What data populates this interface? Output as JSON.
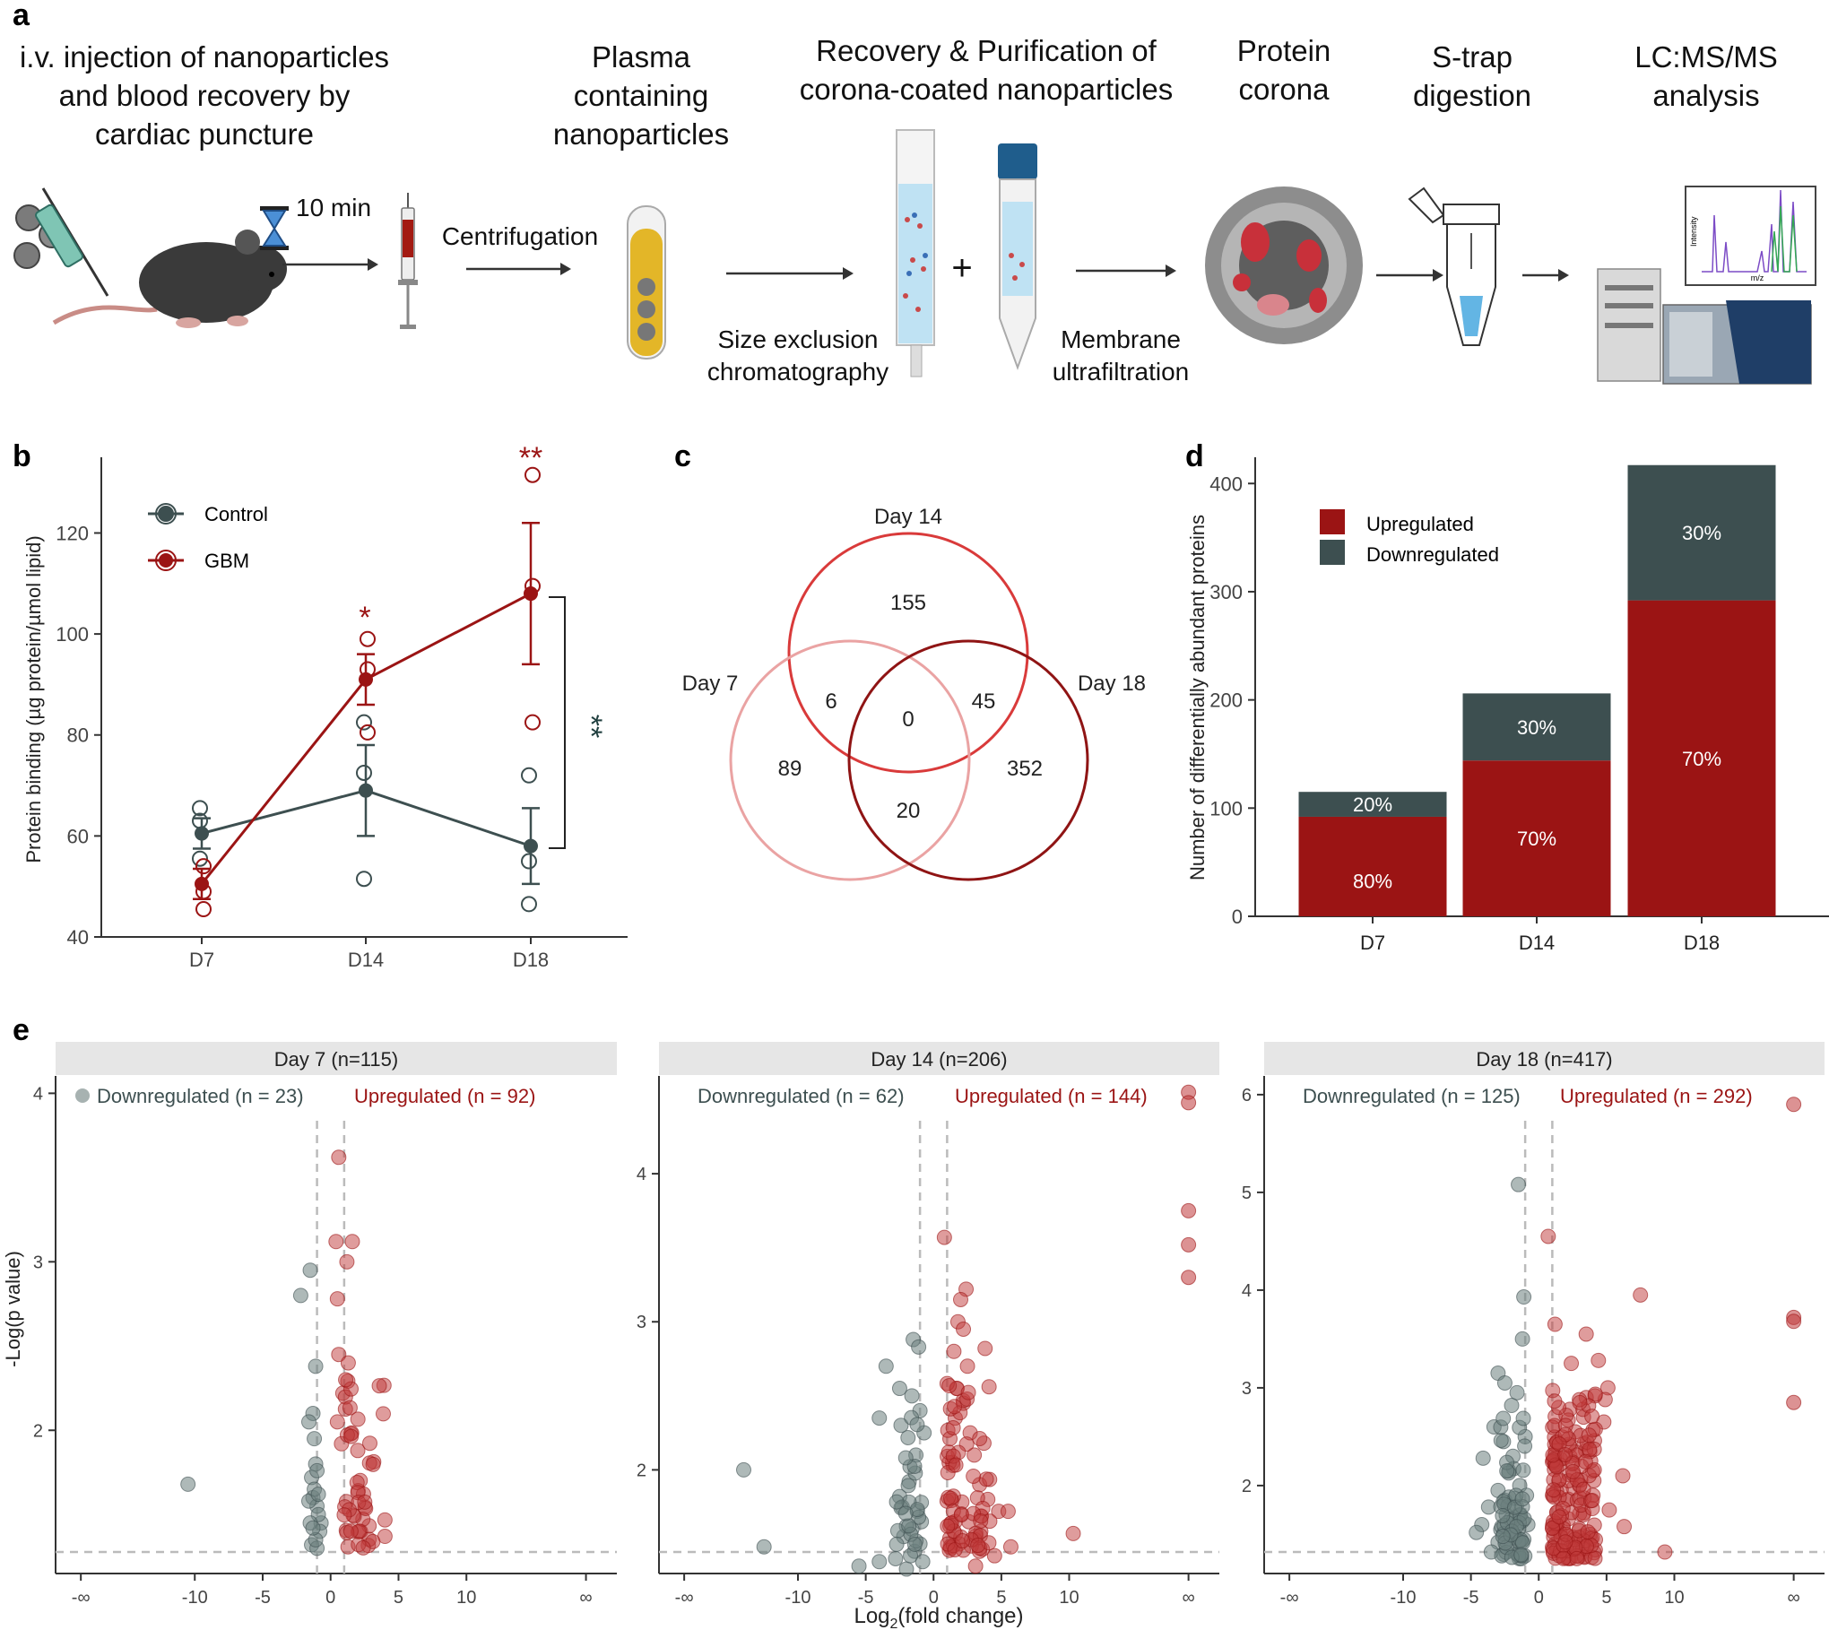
{
  "panel_labels": {
    "a": "a",
    "b": "b",
    "c": "c",
    "d": "d",
    "e": "e"
  },
  "workflow": {
    "steps": [
      {
        "lines": [
          "i.v. injection of nanoparticles",
          "and blood recovery by",
          "cardiac puncture"
        ]
      },
      {
        "lines": [
          "Plasma",
          "containing",
          "nanoparticles"
        ]
      },
      {
        "lines": [
          "Recovery & Purification of",
          "corona-coated nanoparticles"
        ]
      },
      {
        "lines": [
          "Protein",
          "corona"
        ]
      },
      {
        "lines": [
          "S-trap",
          "digestion"
        ]
      },
      {
        "lines": [
          "LC:MS/MS",
          "analysis"
        ]
      }
    ],
    "timer_label": "10 min",
    "centrifugation_label": "Centrifugation",
    "sec_label": [
      "Size exclusion",
      "chromatography"
    ],
    "membrane_label": [
      "Membrane",
      "ultrafiltration"
    ],
    "plus": "+",
    "ms_y": "Intensity",
    "ms_x": "m/z"
  },
  "colors": {
    "control": "#3d4f50",
    "gbm": "#9b1414",
    "gbm_light": "#c0393a",
    "grey_panel": "#e6e6e6",
    "up_pts": "#c0393a",
    "down_pts": "#6c7f7d"
  },
  "chart_data": [
    {
      "id": "b",
      "type": "line",
      "xlabel": "",
      "ylabel": "Protein binding (µg protein/µmol lipid)",
      "categories": [
        "D7",
        "D14",
        "D18"
      ],
      "ylim": [
        40,
        135
      ],
      "yticks": [
        40,
        60,
        80,
        100,
        120
      ],
      "series": [
        {
          "name": "Control",
          "means": [
            60.5,
            69,
            58
          ],
          "sem": [
            3,
            9,
            7.5
          ],
          "points": [
            [
              65.5,
              63,
              55.5
            ],
            [
              82.5,
              72.5,
              51.5
            ],
            [
              72,
              55,
              46.5
            ]
          ]
        },
        {
          "name": "GBM",
          "means": [
            50.5,
            91,
            108
          ],
          "sem": [
            3,
            5,
            14
          ],
          "points": [
            [
              54,
              49,
              45.5
            ],
            [
              99,
              93,
              80.5
            ],
            [
              131.5,
              109.5,
              82.5
            ]
          ]
        }
      ],
      "annotations": [
        {
          "text": "*",
          "category": "D14",
          "y": 128
        },
        {
          "text": "**",
          "category": "D18",
          "y": 138
        },
        {
          "text": "**",
          "bracket": "D18 Control vs GBM"
        }
      ]
    },
    {
      "id": "c",
      "type": "venn",
      "sets": [
        "Day 7",
        "Day 14",
        "Day 18"
      ],
      "regions": {
        "day14_only": 155,
        "day7_day14": 6,
        "all": 0,
        "day14_day18": 45,
        "day7_only": 89,
        "day18_only": 352,
        "day7_day18": 20
      }
    },
    {
      "id": "d",
      "type": "bar",
      "categories": [
        "D7",
        "D14",
        "D18"
      ],
      "ylabel": "Number of differentially abundant proteins",
      "ylim": [
        0,
        420
      ],
      "yticks": [
        0,
        100,
        200,
        300,
        400
      ],
      "series": [
        {
          "name": "Upregulated",
          "values": [
            92,
            144,
            292
          ],
          "labels": [
            "80%",
            "70%",
            "70%"
          ]
        },
        {
          "name": "Downregulated",
          "values": [
            23,
            62,
            125
          ],
          "labels": [
            "20%",
            "30%",
            "30%"
          ]
        }
      ]
    },
    {
      "id": "e",
      "type": "scatter",
      "xlabel": "Log2(fold change)",
      "ylabel": "-Log(p value)",
      "xticks": [
        "-∞",
        "-10",
        "-5",
        "0",
        "5",
        "10",
        "∞"
      ],
      "facets": [
        {
          "title": "Day 7 (n=115)",
          "down_label": "Downregulated (n = 23)",
          "up_label": "Upregulated (n = 92)",
          "ylim": [
            1.15,
            4.05
          ],
          "yticks": [
            2,
            3,
            4
          ],
          "down": [
            [
              -1.5,
              2.95
            ],
            [
              -2.2,
              2.8
            ],
            [
              -1.1,
              2.38
            ],
            [
              -1.3,
              2.1
            ],
            [
              -1.6,
              2.05
            ],
            [
              -1.2,
              1.95
            ],
            [
              -1.1,
              1.8
            ],
            [
              -1.4,
              1.72
            ],
            [
              -10.5,
              1.68
            ],
            [
              -1.3,
              1.6
            ],
            [
              -1.0,
              1.55
            ],
            [
              -0.7,
              1.45
            ],
            [
              -1.4,
              1.32
            ],
            [
              -1.0,
              1.3
            ],
            [
              -1.6,
              1.58
            ],
            [
              -0.9,
              1.5
            ],
            [
              -1.2,
              1.65
            ],
            [
              -0.8,
              1.4
            ],
            [
              -1.5,
              1.45
            ],
            [
              -1.1,
              1.35
            ],
            [
              -0.9,
              1.62
            ],
            [
              -1.3,
              1.42
            ],
            [
              -1.0,
              1.76
            ]
          ],
          "up": [
            [
              0.6,
              3.62
            ],
            [
              0.4,
              3.12
            ],
            [
              1.6,
              3.12
            ],
            [
              1.2,
              3.0
            ],
            [
              0.5,
              2.78
            ],
            [
              0.6,
              2.45
            ],
            [
              1.3,
              2.4
            ],
            [
              0.9,
              2.22
            ],
            [
              0.5,
              2.05
            ],
            [
              1.5,
              1.98
            ],
            [
              0.8,
              1.92
            ],
            [
              2.0,
              1.88
            ]
          ]
        },
        {
          "title": "Day 14 (n=206)",
          "down_label": "Downregulated (n = 62)",
          "up_label": "Upregulated (n = 144)",
          "ylim": [
            1.3,
            4.6
          ],
          "yticks": [
            2,
            3,
            4
          ],
          "down": [
            [
              -1.5,
              2.88
            ],
            [
              -1.1,
              2.83
            ],
            [
              -3.5,
              2.7
            ],
            [
              -2.5,
              2.55
            ],
            [
              -4.0,
              2.35
            ],
            [
              -1.6,
              2.5
            ],
            [
              -1.0,
              2.4
            ],
            [
              -0.7,
              2.25
            ],
            [
              -1.3,
              2.1
            ],
            [
              -14.0,
              2.0
            ],
            [
              -1.8,
              1.92
            ],
            [
              -2.5,
              1.82
            ],
            [
              -1.2,
              1.72
            ],
            [
              -0.9,
              1.65
            ],
            [
              -2.2,
              1.55
            ],
            [
              -12.5,
              1.48
            ],
            [
              -1.4,
              1.45
            ],
            [
              -4.0,
              1.38
            ],
            [
              -5.5,
              1.35
            ],
            [
              -2.0,
              1.33
            ],
            [
              -1.6,
              1.6
            ],
            [
              -1.0,
              1.5
            ],
            [
              -0.8,
              1.38
            ],
            [
              -1.7,
              1.42
            ],
            [
              -1.3,
              1.52
            ],
            [
              -2.8,
              1.4
            ],
            [
              -0.9,
              1.78
            ],
            [
              -1.1,
              1.68
            ],
            [
              -2.0,
              1.62
            ]
          ],
          "up": [
            [
              0.8,
              3.57
            ],
            [
              2.4,
              3.22
            ],
            [
              2.0,
              3.15
            ],
            [
              1.8,
              3.0
            ],
            [
              2.2,
              2.95
            ],
            [
              3.8,
              2.82
            ],
            [
              1.5,
              2.8
            ],
            [
              2.5,
              2.7
            ],
            [
              1.7,
              2.55
            ],
            [
              2.2,
              2.45
            ],
            [
              1.6,
              2.35
            ],
            [
              2.7,
              2.25
            ],
            [
              3.0,
              2.1
            ],
            [
              1.4,
              2.05
            ],
            [
              3.4,
              1.9
            ],
            [
              4.0,
              1.8
            ],
            [
              4.8,
              1.72
            ],
            [
              5.5,
              1.72
            ],
            [
              2.6,
              1.65
            ],
            [
              5.7,
              1.48
            ],
            [
              10.3,
              1.57
            ],
            [
              3.1,
              1.35
            ],
            [
              4.5,
              1.42
            ],
            [
              1.9,
              1.5
            ]
          ]
        },
        {
          "title": "Day 18 (n=417)",
          "down_label": "Downregulated (n = 125)",
          "up_label": "Upregulated (n = 292)",
          "ylim": [
            1.1,
            6.1
          ],
          "yticks": [
            2,
            3,
            4,
            5,
            6
          ],
          "down": [
            [
              -1.5,
              5.08
            ],
            [
              -1.1,
              3.93
            ],
            [
              -1.2,
              3.5
            ],
            [
              -3.0,
              3.15
            ],
            [
              -2.5,
              3.05
            ],
            [
              -1.6,
              2.95
            ],
            [
              -2.0,
              2.82
            ],
            [
              -3.3,
              2.6
            ],
            [
              -2.6,
              2.45
            ],
            [
              -1.0,
              2.5
            ],
            [
              -4.1,
              2.28
            ],
            [
              -2.2,
              2.15
            ],
            [
              -1.4,
              2.0
            ],
            [
              -3.0,
              1.95
            ],
            [
              -2.5,
              1.85
            ],
            [
              -3.7,
              1.78
            ],
            [
              -4.2,
              1.6
            ],
            [
              -4.6,
              1.52
            ],
            [
              -1.8,
              1.5
            ],
            [
              -3.0,
              1.42
            ],
            [
              -2.0,
              1.35
            ],
            [
              -1.1,
              1.45
            ],
            [
              -0.8,
              1.6
            ],
            [
              -1.4,
              1.7
            ],
            [
              -2.8,
              1.55
            ],
            [
              -1.6,
              1.3
            ],
            [
              -3.5,
              1.32
            ],
            [
              -0.9,
              1.9
            ],
            [
              -1.9,
              2.3
            ],
            [
              -2.4,
              1.7
            ]
          ],
          "up": [
            [
              0.7,
              4.55
            ],
            [
              7.5,
              3.95
            ],
            [
              1.2,
              3.65
            ],
            [
              3.5,
              3.55
            ],
            [
              4.4,
              3.28
            ],
            [
              2.4,
              3.25
            ],
            [
              5.1,
              3.0
            ],
            [
              3.5,
              2.9
            ],
            [
              4.9,
              2.88
            ],
            [
              2.3,
              2.78
            ],
            [
              3.3,
              2.7
            ],
            [
              4.8,
              2.65
            ],
            [
              2.7,
              2.55
            ],
            [
              6.2,
              2.1
            ],
            [
              2.3,
              2.3
            ],
            [
              5.2,
              1.75
            ],
            [
              6.3,
              1.58
            ],
            [
              9.3,
              1.32
            ],
            [
              1.5,
              2.05
            ],
            [
              3.0,
              2.0
            ],
            [
              2.0,
              1.85
            ],
            [
              4.0,
              1.9
            ],
            [
              1.2,
              1.4
            ],
            [
              1.8,
              1.6
            ],
            [
              3.8,
              1.5
            ],
            [
              2.6,
              1.35
            ]
          ]
        }
      ],
      "infinite_points": {
        "day14": [
          4.55,
          4.48,
          3.75,
          3.52,
          3.3
        ],
        "day18": [
          5.9,
          3.72,
          3.68,
          2.85
        ]
      }
    }
  ],
  "legend_b": {
    "control": "Control",
    "gbm": "GBM"
  },
  "legend_d": {
    "up": "Upregulated",
    "down": "Downregulated"
  }
}
